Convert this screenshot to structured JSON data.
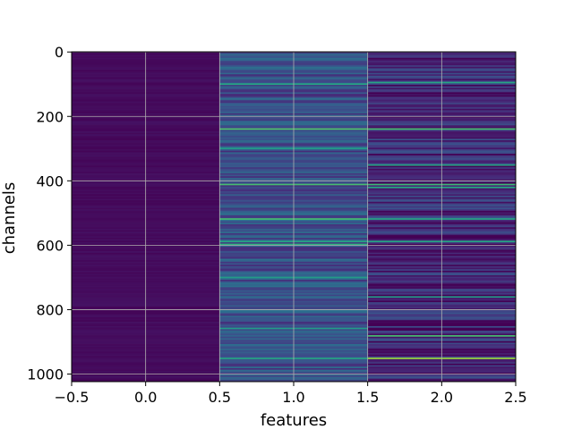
{
  "chart_data": {
    "type": "heatmap",
    "title": "",
    "xlabel": "features",
    "ylabel": "channels",
    "xlim": [
      -0.5,
      2.5
    ],
    "ylim": [
      1023.5,
      -0.5
    ],
    "y_inverted": true,
    "grid": true,
    "colormap": "viridis",
    "x_ticks": [
      -0.5,
      0.0,
      0.5,
      1.0,
      1.5,
      2.0,
      2.5
    ],
    "x_tick_labels": [
      "−0.5",
      "0.0",
      "0.5",
      "1.0",
      "1.5",
      "2.0",
      "2.5"
    ],
    "y_ticks": [
      0,
      200,
      400,
      600,
      800,
      1000
    ],
    "y_tick_labels": [
      "0",
      "200",
      "400",
      "600",
      "800",
      "1000"
    ],
    "columns": [
      {
        "feature": 0,
        "n_channels": 1024,
        "base": 0.03,
        "amp": 0.04,
        "highlights": []
      },
      {
        "feature": 1,
        "n_channels": 1024,
        "base": 0.25,
        "amp": 0.25,
        "highlights": [
          {
            "channel": 100,
            "value": 0.6
          },
          {
            "channel": 240,
            "value": 0.72
          },
          {
            "channel": 242,
            "value": 0.65
          },
          {
            "channel": 300,
            "value": 0.55
          },
          {
            "channel": 410,
            "value": 0.7
          },
          {
            "channel": 520,
            "value": 0.7
          },
          {
            "channel": 590,
            "value": 0.6
          },
          {
            "channel": 600,
            "value": 0.65
          },
          {
            "channel": 700,
            "value": 0.55
          },
          {
            "channel": 860,
            "value": 0.55
          },
          {
            "channel": 950,
            "value": 0.6
          }
        ]
      },
      {
        "feature": 2,
        "n_channels": 1024,
        "base": 0.12,
        "amp": 0.28,
        "highlights": [
          {
            "channel": 95,
            "value": 0.6
          },
          {
            "channel": 240,
            "value": 0.7
          },
          {
            "channel": 350,
            "value": 0.6
          },
          {
            "channel": 410,
            "value": 0.68
          },
          {
            "channel": 420,
            "value": 0.6
          },
          {
            "channel": 520,
            "value": 0.6
          },
          {
            "channel": 590,
            "value": 0.6
          },
          {
            "channel": 760,
            "value": 0.55
          },
          {
            "channel": 880,
            "value": 0.7
          },
          {
            "channel": 950,
            "value": 0.85
          }
        ]
      }
    ]
  }
}
